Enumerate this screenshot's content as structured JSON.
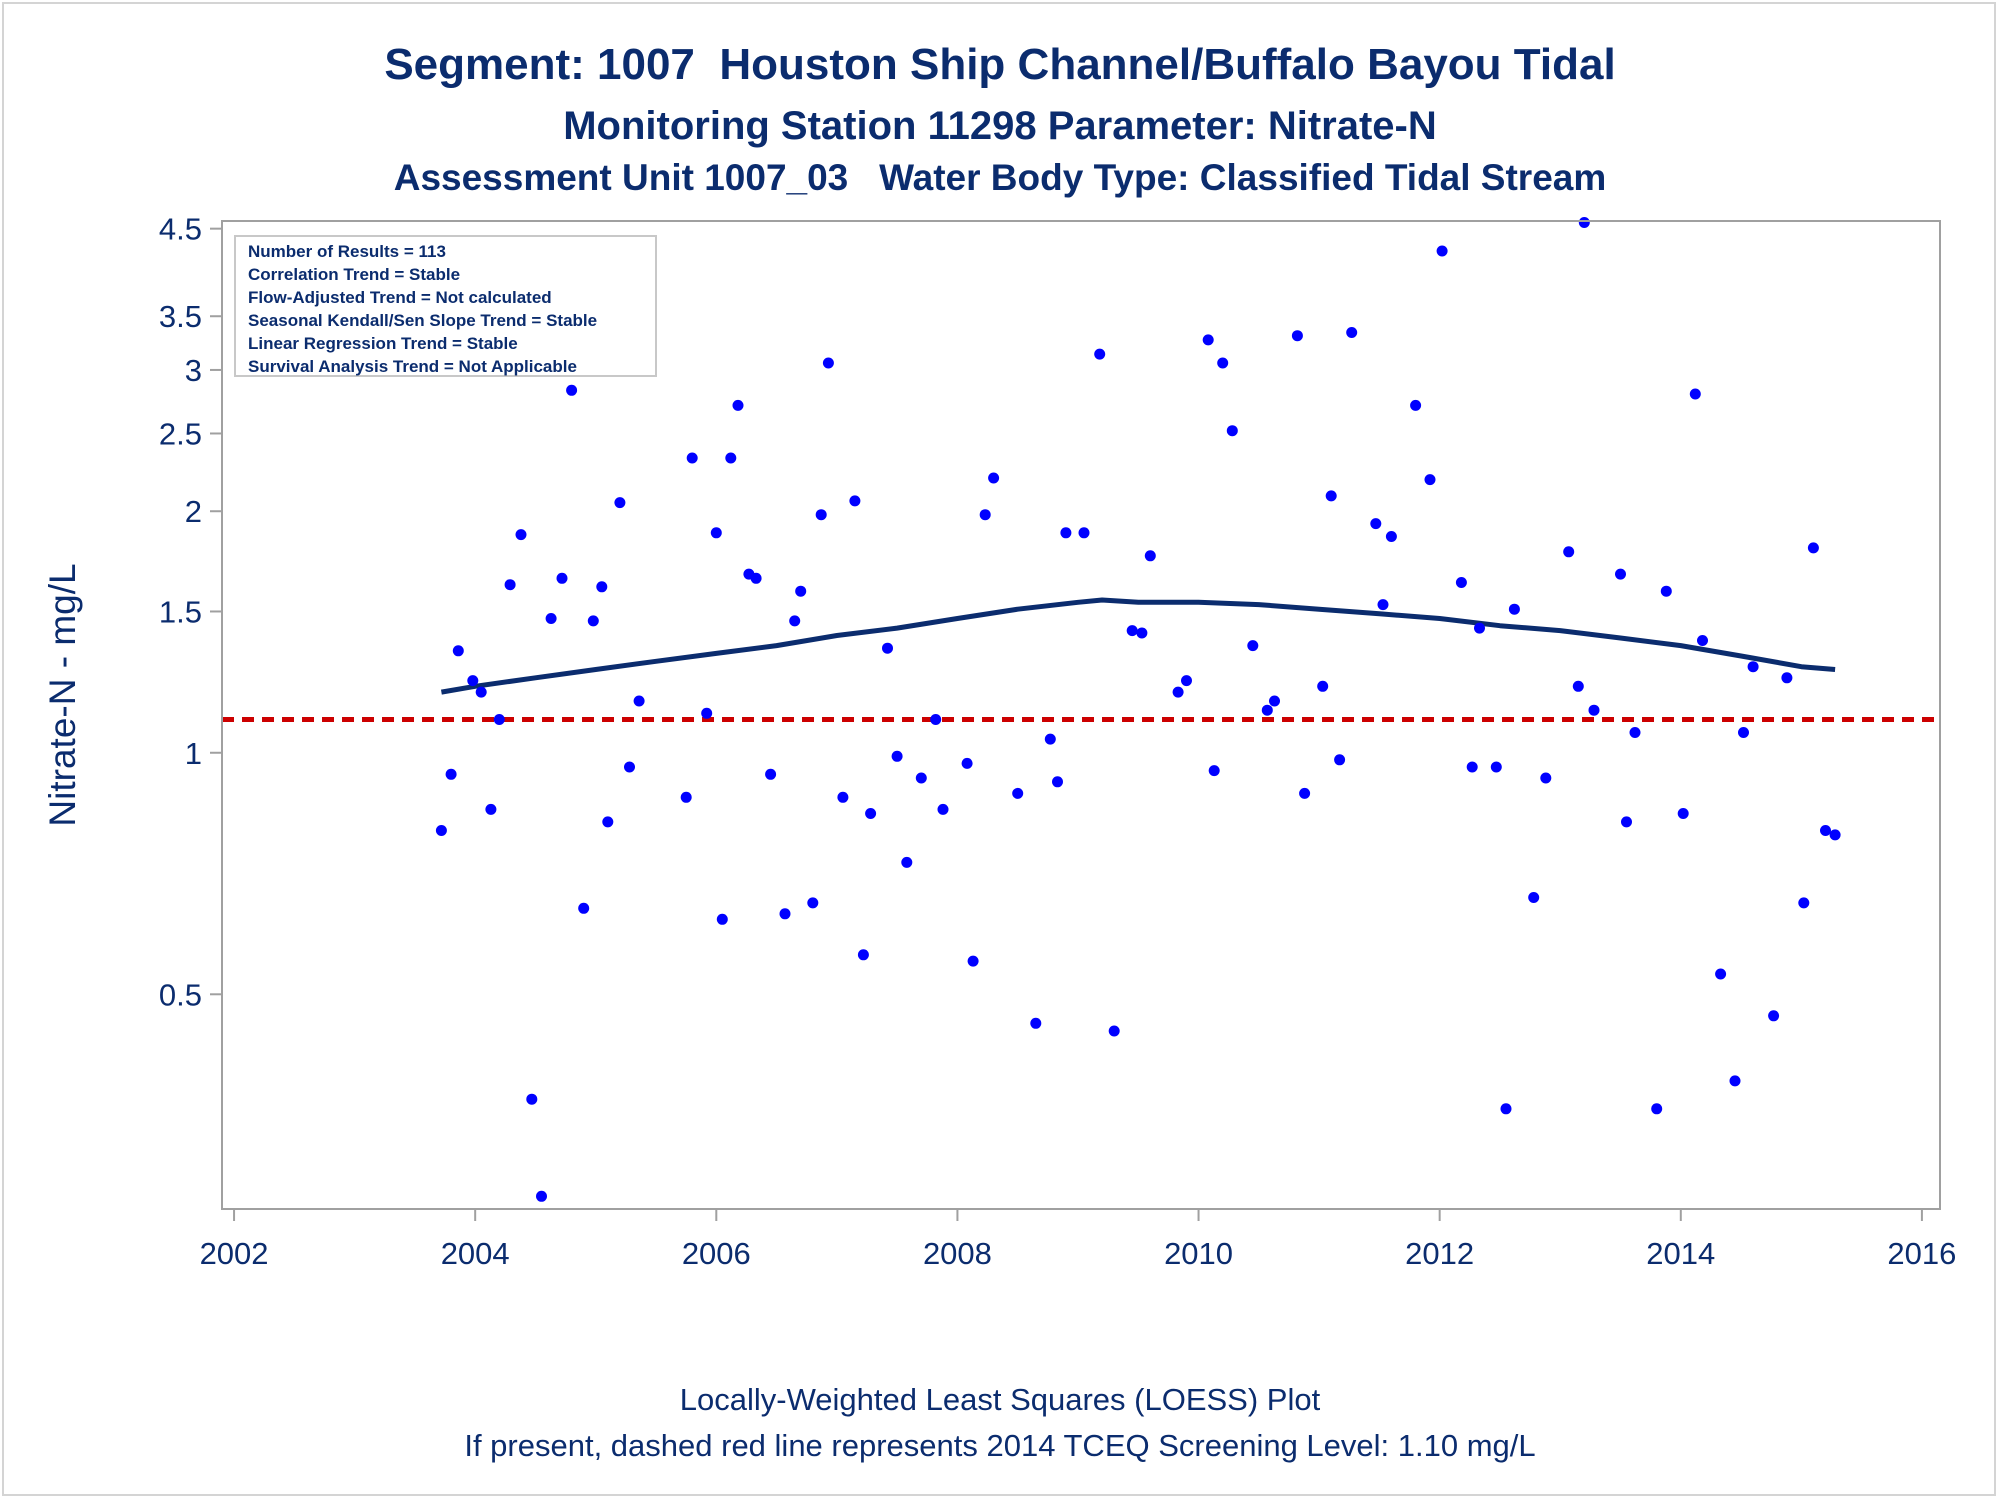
{
  "titles": {
    "line1": "Segment: 1007  Houston Ship Channel/Buffalo Bayou Tidal",
    "line2": "Monitoring Station 11298 Parameter: Nitrate-N",
    "line3": "Assessment Unit 1007_03   Water Body Type: Classified Tidal Stream"
  },
  "stats_box": [
    "Number of Results = 113",
    "Correlation Trend = Stable",
    "Flow-Adjusted Trend = Not calculated",
    "Seasonal Kendall/Sen Slope Trend = Stable",
    "Linear Regression Trend = Stable",
    "Survival Analysis Trend = Not Applicable"
  ],
  "footnotes": {
    "line1": "Locally-Weighted Least Squares (LOESS) Plot",
    "line2": "If present, dashed red line represents 2014 TCEQ Screening Level: 1.10 mg/L"
  },
  "colors": {
    "points": "#0000ff",
    "loess": "#0b2c6e",
    "screening": "#cc0000",
    "text": "#0b2c6e",
    "frame": "#a0a0a0"
  },
  "chart_data": {
    "type": "scatter",
    "title": "Segment: 1007  Houston Ship Channel/Buffalo Bayou Tidal",
    "xlabel": "",
    "ylabel": "Nitrate-N - mg/L",
    "xlim": [
      2001.9,
      2016.15
    ],
    "ylim": [
      0.27,
      4.6
    ],
    "yscale": "log",
    "xticks": [
      2002,
      2004,
      2006,
      2008,
      2010,
      2012,
      2014,
      2016
    ],
    "yticks": [
      0.5,
      1,
      1.5,
      2,
      2.5,
      3,
      3.5,
      4.5
    ],
    "ytick_labels": [
      "0.5",
      "1",
      "1.5",
      "2",
      "2.5",
      "3",
      "3.5",
      "4.5"
    ],
    "grid": false,
    "screening_level": 1.1,
    "points": [
      [
        2003.72,
        0.8
      ],
      [
        2003.8,
        0.94
      ],
      [
        2003.86,
        1.34
      ],
      [
        2003.98,
        1.23
      ],
      [
        2004.05,
        1.19
      ],
      [
        2004.13,
        0.85
      ],
      [
        2004.2,
        1.1
      ],
      [
        2004.29,
        1.62
      ],
      [
        2004.38,
        1.87
      ],
      [
        2004.47,
        0.37
      ],
      [
        2004.55,
        0.28
      ],
      [
        2004.63,
        1.47
      ],
      [
        2004.72,
        1.65
      ],
      [
        2004.8,
        2.83
      ],
      [
        2004.9,
        0.64
      ],
      [
        2004.98,
        1.46
      ],
      [
        2005.05,
        1.61
      ],
      [
        2005.1,
        0.82
      ],
      [
        2005.2,
        2.05
      ],
      [
        2005.28,
        0.96
      ],
      [
        2005.36,
        1.16
      ],
      [
        2005.75,
        0.88
      ],
      [
        2005.8,
        2.33
      ],
      [
        2005.92,
        1.12
      ],
      [
        2006.0,
        1.88
      ],
      [
        2006.05,
        0.62
      ],
      [
        2006.12,
        2.33
      ],
      [
        2006.18,
        2.71
      ],
      [
        2006.27,
        1.67
      ],
      [
        2006.33,
        1.65
      ],
      [
        2006.45,
        0.94
      ],
      [
        2006.57,
        0.63
      ],
      [
        2006.65,
        1.46
      ],
      [
        2006.7,
        1.59
      ],
      [
        2006.8,
        0.65
      ],
      [
        2006.87,
        1.98
      ],
      [
        2006.93,
        3.06
      ],
      [
        2007.05,
        0.88
      ],
      [
        2007.15,
        2.06
      ],
      [
        2007.22,
        0.56
      ],
      [
        2007.28,
        0.84
      ],
      [
        2007.42,
        1.35
      ],
      [
        2007.5,
        0.99
      ],
      [
        2007.58,
        0.73
      ],
      [
        2007.7,
        0.93
      ],
      [
        2007.82,
        1.1
      ],
      [
        2007.88,
        0.85
      ],
      [
        2008.08,
        0.97
      ],
      [
        2008.13,
        0.55
      ],
      [
        2008.23,
        1.98
      ],
      [
        2008.3,
        2.2
      ],
      [
        2008.5,
        0.89
      ],
      [
        2008.65,
        0.46
      ],
      [
        2008.77,
        1.04
      ],
      [
        2008.83,
        0.92
      ],
      [
        2008.9,
        1.88
      ],
      [
        2009.05,
        1.88
      ],
      [
        2009.18,
        3.14
      ],
      [
        2009.3,
        0.45
      ],
      [
        2009.45,
        1.42
      ],
      [
        2009.53,
        1.41
      ],
      [
        2009.6,
        1.76
      ],
      [
        2009.83,
        1.19
      ],
      [
        2009.9,
        1.23
      ],
      [
        2010.08,
        3.27
      ],
      [
        2010.13,
        0.95
      ],
      [
        2010.2,
        3.06
      ],
      [
        2010.28,
        2.52
      ],
      [
        2010.45,
        1.36
      ],
      [
        2010.57,
        1.13
      ],
      [
        2010.63,
        1.16
      ],
      [
        2010.82,
        3.31
      ],
      [
        2010.88,
        0.89
      ],
      [
        2011.03,
        1.21
      ],
      [
        2011.1,
        2.09
      ],
      [
        2011.17,
        0.98
      ],
      [
        2011.27,
        3.34
      ],
      [
        2011.47,
        1.93
      ],
      [
        2011.53,
        1.53
      ],
      [
        2011.6,
        1.86
      ],
      [
        2011.8,
        2.71
      ],
      [
        2011.92,
        2.19
      ],
      [
        2012.02,
        4.22
      ],
      [
        2012.18,
        1.63
      ],
      [
        2012.27,
        0.96
      ],
      [
        2012.33,
        1.43
      ],
      [
        2012.47,
        0.96
      ],
      [
        2012.55,
        0.36
      ],
      [
        2012.62,
        1.51
      ],
      [
        2012.78,
        0.66
      ],
      [
        2012.88,
        0.93
      ],
      [
        2013.07,
        1.78
      ],
      [
        2013.15,
        1.21
      ],
      [
        2013.2,
        4.58
      ],
      [
        2013.28,
        1.13
      ],
      [
        2013.5,
        1.67
      ],
      [
        2013.55,
        0.82
      ],
      [
        2013.62,
        1.06
      ],
      [
        2013.8,
        0.36
      ],
      [
        2013.88,
        1.59
      ],
      [
        2014.02,
        0.84
      ],
      [
        2014.12,
        2.8
      ],
      [
        2014.18,
        1.38
      ],
      [
        2014.33,
        0.53
      ],
      [
        2014.45,
        0.39
      ],
      [
        2014.52,
        1.06
      ],
      [
        2014.6,
        1.28
      ],
      [
        2014.77,
        0.47
      ],
      [
        2014.88,
        1.24
      ],
      [
        2015.02,
        0.65
      ],
      [
        2015.1,
        1.8
      ],
      [
        2015.2,
        0.8
      ],
      [
        2015.28,
        0.79
      ]
    ],
    "loess": [
      [
        2003.72,
        1.19
      ],
      [
        2004.0,
        1.21
      ],
      [
        2004.5,
        1.24
      ],
      [
        2005.0,
        1.27
      ],
      [
        2005.5,
        1.3
      ],
      [
        2006.0,
        1.33
      ],
      [
        2006.5,
        1.36
      ],
      [
        2007.0,
        1.4
      ],
      [
        2007.5,
        1.43
      ],
      [
        2008.0,
        1.47
      ],
      [
        2008.5,
        1.51
      ],
      [
        2009.0,
        1.54
      ],
      [
        2009.2,
        1.55
      ],
      [
        2009.5,
        1.54
      ],
      [
        2010.0,
        1.54
      ],
      [
        2010.5,
        1.53
      ],
      [
        2011.0,
        1.51
      ],
      [
        2011.5,
        1.49
      ],
      [
        2012.0,
        1.47
      ],
      [
        2012.5,
        1.44
      ],
      [
        2013.0,
        1.42
      ],
      [
        2013.5,
        1.39
      ],
      [
        2014.0,
        1.36
      ],
      [
        2014.5,
        1.32
      ],
      [
        2015.0,
        1.28
      ],
      [
        2015.28,
        1.27
      ]
    ]
  }
}
